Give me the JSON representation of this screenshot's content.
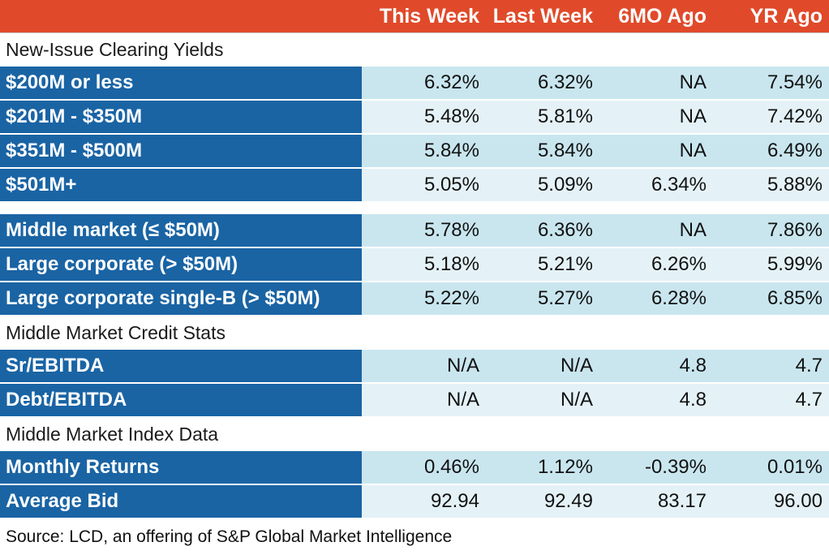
{
  "header": [
    "",
    "This Week",
    "Last Week",
    "6MO Ago",
    "YR Ago"
  ],
  "sections": {
    "clearing": "New-Issue Clearing Yields",
    "credit": "Middle Market Credit Stats",
    "index": "Middle Market Index Data"
  },
  "clearing_rows": [
    {
      "label": "$200M or less",
      "values": [
        "6.32%",
        "6.32%",
        "NA",
        "7.54%"
      ]
    },
    {
      "label": "$201M - $350M",
      "values": [
        "5.48%",
        "5.81%",
        "NA",
        "7.42%"
      ]
    },
    {
      "label": "$351M - $500M",
      "values": [
        "5.84%",
        "5.84%",
        "NA",
        "6.49%"
      ]
    },
    {
      "label": "$501M+",
      "values": [
        "5.05%",
        "5.09%",
        "6.34%",
        "5.88%"
      ]
    }
  ],
  "market_rows": [
    {
      "label": "Middle market (≤ $50M)",
      "values": [
        "5.78%",
        "6.36%",
        "NA",
        "7.86%"
      ]
    },
    {
      "label": "Large corporate (> $50M)",
      "values": [
        "5.18%",
        "5.21%",
        "6.26%",
        "5.99%"
      ]
    },
    {
      "label": "Large corporate single-B (> $50M)",
      "values": [
        "5.22%",
        "5.27%",
        "6.28%",
        "6.85%"
      ]
    }
  ],
  "credit_rows": [
    {
      "label": "Sr/EBITDA",
      "values": [
        "N/A",
        "N/A",
        "4.8",
        "4.7"
      ]
    },
    {
      "label": "Debt/EBITDA",
      "values": [
        "N/A",
        "N/A",
        "4.8",
        "4.7"
      ]
    }
  ],
  "index_rows": [
    {
      "label": "Monthly Returns",
      "values": [
        "0.46%",
        "1.12%",
        "-0.39%",
        "0.01%"
      ]
    },
    {
      "label": "Average Bid",
      "values": [
        "92.94",
        "92.49",
        "83.17",
        "96.00"
      ]
    }
  ],
  "source": "Source: LCD, an offering of S&P Global Market Intelligence",
  "colors": {
    "header_bg": "#e04a2a",
    "label_bg": "#1a64a4",
    "row_light": "#c9e6ef",
    "row_pale": "#e4f2f7"
  }
}
